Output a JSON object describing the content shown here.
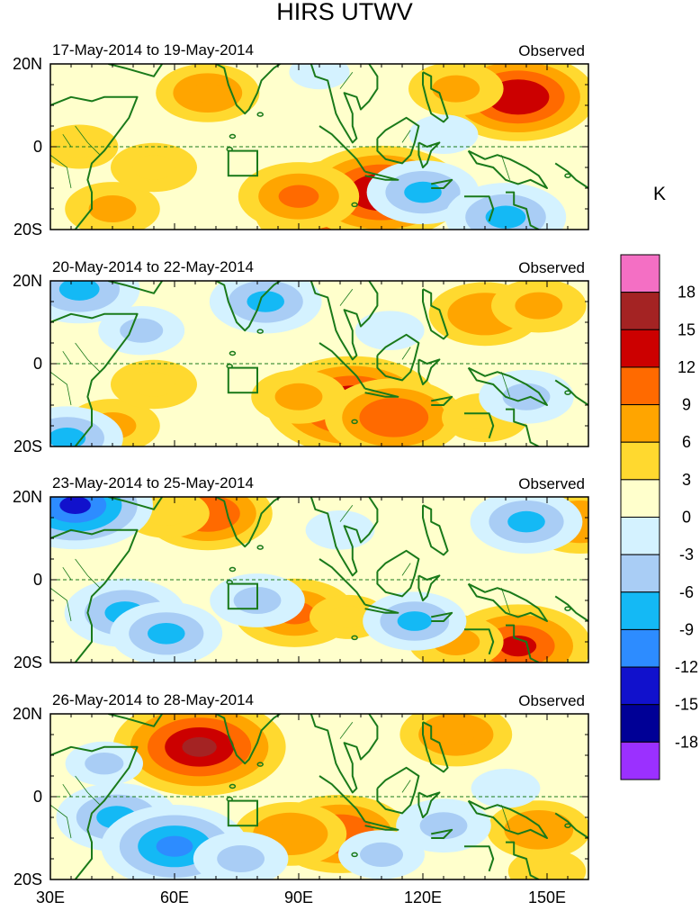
{
  "chart_data": {
    "type": "heatmap",
    "title": "HIRS UTWV",
    "colorbar_unit": "K",
    "colorbar_levels": [
      "18",
      "15",
      "12",
      "9",
      "6",
      "3",
      "0",
      "-3",
      "-6",
      "-9",
      "-12",
      "-15",
      "-18"
    ],
    "colorbar_colors": [
      "#f46fc4",
      "#a42323",
      "#cc0000",
      "#ff6a00",
      "#ffa500",
      "#ffd92f",
      "#ffffcc",
      "#d4f2ff",
      "#a9cdf5",
      "#14b9f5",
      "#2d8cff",
      "#1111cc",
      "#000096",
      "#9b30ff"
    ],
    "x_ticks": [
      "30E",
      "60E",
      "90E",
      "120E",
      "150E"
    ],
    "x_tick_values": [
      30,
      60,
      90,
      120,
      150
    ],
    "y_ticks": [
      "20N",
      "0",
      "20S"
    ],
    "y_tick_values": [
      20,
      0,
      -20
    ],
    "xlim": [
      30,
      160
    ],
    "ylim": [
      -20,
      20
    ],
    "panels": [
      {
        "date_range": "17-May-2014 to 19-May-2014",
        "tag": "Observed",
        "anomalies": [
          {
            "lon": 68,
            "lat": 13,
            "value": 7
          },
          {
            "lon": 143,
            "lat": 12,
            "value": 13
          },
          {
            "lon": 128,
            "lat": 14,
            "value": 6
          },
          {
            "lon": 100,
            "lat": -15,
            "value": 15
          },
          {
            "lon": 110,
            "lat": -11,
            "value": 14
          },
          {
            "lon": 90,
            "lat": -12,
            "value": 9
          },
          {
            "lon": 45,
            "lat": -15,
            "value": 6
          },
          {
            "lon": 55,
            "lat": -5,
            "value": 5
          },
          {
            "lon": 37,
            "lat": 0,
            "value": 4
          },
          {
            "lon": 120,
            "lat": -11,
            "value": -8
          },
          {
            "lon": 140,
            "lat": -17,
            "value": -9
          },
          {
            "lon": 95,
            "lat": 18,
            "value": -2
          },
          {
            "lon": 125,
            "lat": 3,
            "value": -3
          }
        ]
      },
      {
        "date_range": "20-May-2014 to 22-May-2014",
        "tag": "Observed",
        "anomalies": [
          {
            "lon": 103,
            "lat": -10,
            "value": 15
          },
          {
            "lon": 113,
            "lat": -13,
            "value": 11
          },
          {
            "lon": 90,
            "lat": -8,
            "value": 6
          },
          {
            "lon": 135,
            "lat": 12,
            "value": 8
          },
          {
            "lon": 148,
            "lat": 14,
            "value": 6
          },
          {
            "lon": 135,
            "lat": -13,
            "value": 5
          },
          {
            "lon": 45,
            "lat": -15,
            "value": 6
          },
          {
            "lon": 55,
            "lat": -5,
            "value": 5
          },
          {
            "lon": 37,
            "lat": 18,
            "value": -9
          },
          {
            "lon": 34,
            "lat": -18,
            "value": -8
          },
          {
            "lon": 82,
            "lat": 15,
            "value": -8
          },
          {
            "lon": 52,
            "lat": 8,
            "value": -5
          },
          {
            "lon": 145,
            "lat": -8,
            "value": -6
          },
          {
            "lon": 112,
            "lat": 8,
            "value": -3
          }
        ]
      },
      {
        "date_range": "23-May-2014 to 25-May-2014",
        "tag": "Observed",
        "anomalies": [
          {
            "lon": 68,
            "lat": 16,
            "value": 10
          },
          {
            "lon": 58,
            "lat": 16,
            "value": 5
          },
          {
            "lon": 89,
            "lat": -8,
            "value": 9
          },
          {
            "lon": 143,
            "lat": -16,
            "value": 12
          },
          {
            "lon": 128,
            "lat": -15,
            "value": 6
          },
          {
            "lon": 102,
            "lat": -9,
            "value": 4
          },
          {
            "lon": 158,
            "lat": 14,
            "value": 8
          },
          {
            "lon": 36,
            "lat": 18,
            "value": -13
          },
          {
            "lon": 48,
            "lat": -8,
            "value": -9
          },
          {
            "lon": 58,
            "lat": -13,
            "value": -8
          },
          {
            "lon": 145,
            "lat": 14,
            "value": -8
          },
          {
            "lon": 80,
            "lat": -5,
            "value": -6
          },
          {
            "lon": 118,
            "lat": -10,
            "value": -7
          },
          {
            "lon": 100,
            "lat": 12,
            "value": -3
          }
        ]
      },
      {
        "date_range": "26-May-2014 to 28-May-2014",
        "tag": "Observed",
        "anomalies": [
          {
            "lon": 66,
            "lat": 12,
            "value": 15
          },
          {
            "lon": 100,
            "lat": -9,
            "value": 11
          },
          {
            "lon": 88,
            "lat": -9,
            "value": 8
          },
          {
            "lon": 128,
            "lat": 15,
            "value": 8
          },
          {
            "lon": 148,
            "lat": -8,
            "value": 7
          },
          {
            "lon": 150,
            "lat": -18,
            "value": 4
          },
          {
            "lon": 46,
            "lat": -5,
            "value": -9
          },
          {
            "lon": 60,
            "lat": -12,
            "value": -12
          },
          {
            "lon": 76,
            "lat": -15,
            "value": -6
          },
          {
            "lon": 110,
            "lat": -14,
            "value": -5
          },
          {
            "lon": 125,
            "lat": -7,
            "value": -6
          },
          {
            "lon": 43,
            "lat": 8,
            "value": -4
          },
          {
            "lon": 140,
            "lat": 2,
            "value": -3
          }
        ]
      }
    ]
  }
}
